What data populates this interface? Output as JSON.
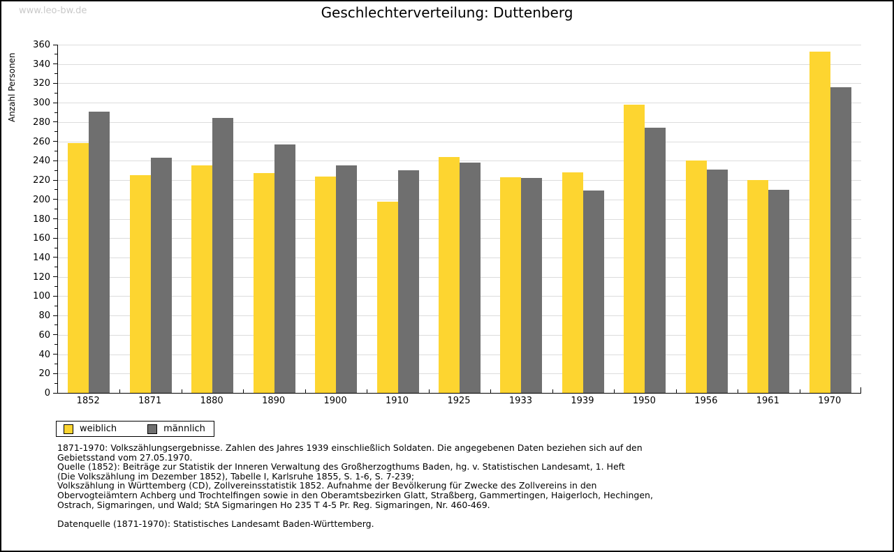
{
  "page": {
    "watermark": "www.leo-bw.de",
    "title": "Geschlechterverteilung: Duttenberg"
  },
  "chart_data": {
    "type": "bar",
    "title": "Geschlechterverteilung: Duttenberg",
    "ylabel": "Anzahl Personen",
    "xlabel": "",
    "ylim": [
      0,
      360
    ],
    "ytick_step": 20,
    "ytick_minor_step": 10,
    "grid": true,
    "legend_position": "bottom-left",
    "categories": [
      "1852",
      "1871",
      "1880",
      "1890",
      "1900",
      "1910",
      "1925",
      "1933",
      "1939",
      "1950",
      "1956",
      "1961",
      "1970"
    ],
    "series": [
      {
        "name": "weiblich",
        "color": "#fdd530",
        "values": [
          258,
          225,
          235,
          227,
          224,
          198,
          244,
          223,
          228,
          298,
          240,
          220,
          353
        ]
      },
      {
        "name": "männlich",
        "color": "#6f6f6f",
        "values": [
          291,
          243,
          284,
          257,
          235,
          230,
          238,
          222,
          209,
          274,
          231,
          210,
          316
        ]
      }
    ]
  },
  "footer": {
    "lines": [
      "1871-1970: Volkszählungsergebnisse. Zahlen des Jahres 1939 einschließlich Soldaten. Die angegebenen Daten beziehen sich auf den",
      "Gebietsstand vom 27.05.1970.",
      "Quelle (1852): Beiträge zur Statistik der Inneren Verwaltung des Großherzogthums Baden, hg. v. Statistischen Landesamt, 1. Heft",
      "(Die Volkszählung im Dezember 1852), Tabelle I, Karlsruhe 1855, S. 1-6, S. 7-239;",
      "Volkszählung in Württemberg (CD), Zollvereinsstatistik 1852. Aufnahme der Bevölkerung für Zwecke des Zollvereins in den",
      "Obervogteiämtern Achberg und Trochtelfingen sowie in den Oberamtsbezirken Glatt, Straßberg, Gammertingen, Haigerloch, Hechingen,",
      "Ostrach, Sigmaringen, und Wald; StA Sigmaringen Ho 235 T 4-5 Pr. Reg. Sigmaringen, Nr. 460-469.",
      "",
      "Datenquelle (1871-1970): Statistisches Landesamt Baden-Württemberg."
    ]
  }
}
